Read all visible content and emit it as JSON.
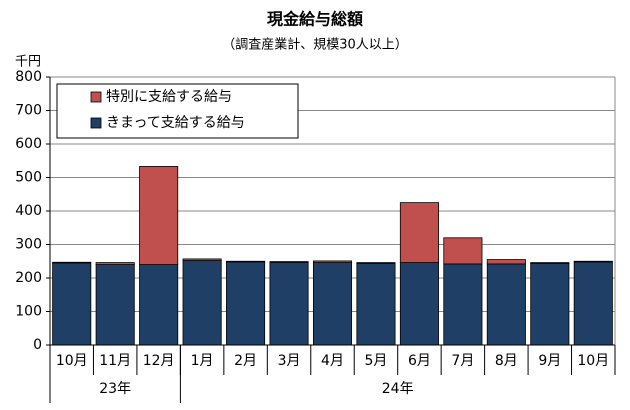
{
  "chart_data": {
    "type": "stacked_bar",
    "title": "現金給与総額",
    "subtitle": "（調査産業計、規模30人以上）",
    "y_unit": "千円",
    "categories": [
      "10月",
      "11月",
      "12月",
      "1月",
      "2月",
      "3月",
      "4月",
      "5月",
      "6月",
      "7月",
      "8月",
      "9月",
      "10月"
    ],
    "year_groups": [
      {
        "label": "23年",
        "span": 3
      },
      {
        "label": "24年",
        "span": 10
      }
    ],
    "series": [
      {
        "name": "きまって支給する給与",
        "color": "#1f3f66",
        "values": [
          245,
          240,
          240,
          252,
          248,
          247,
          246,
          244,
          246,
          242,
          242,
          244,
          248
        ]
      },
      {
        "name": "特別に支給する給与",
        "color": "#c0504d",
        "values": [
          2,
          6,
          293,
          5,
          2,
          2,
          5,
          2,
          179,
          78,
          13,
          2,
          2
        ]
      }
    ],
    "ylim": [
      0,
      800
    ],
    "yticks": [
      0,
      100,
      200,
      300,
      400,
      500,
      600,
      700,
      800
    ],
    "grid": true
  }
}
